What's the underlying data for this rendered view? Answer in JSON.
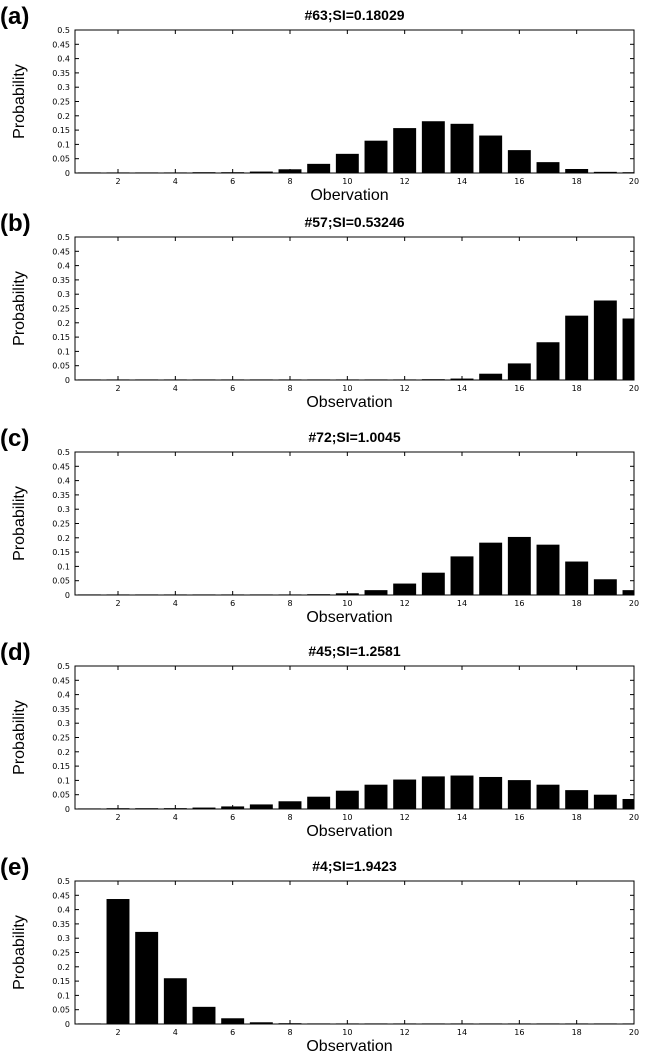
{
  "chart_data": [
    {
      "type": "bar",
      "panel_label": "(a)",
      "title": "#63;SI=0.18029",
      "xlabel": "Obervation",
      "ylabel": "Probability",
      "x": [
        1,
        2,
        3,
        4,
        5,
        6,
        7,
        8,
        9,
        10,
        11,
        12,
        13,
        14,
        15,
        16,
        17,
        18,
        19,
        20
      ],
      "values": [
        0,
        0,
        0,
        0,
        0.001,
        0.002,
        0.005,
        0.013,
        0.032,
        0.067,
        0.113,
        0.157,
        0.181,
        0.172,
        0.131,
        0.08,
        0.038,
        0.014,
        0.004,
        0.001
      ],
      "xticks": [
        2,
        4,
        6,
        8,
        10,
        12,
        14,
        16,
        18,
        20
      ],
      "yticks": [
        "0",
        "0.05",
        "0.1",
        "0.15",
        "0.2",
        "0.25",
        "0.3",
        "0.35",
        "0.4",
        "0.45",
        "0.5"
      ],
      "xlim": [
        0.5,
        20
      ],
      "ylim": [
        0,
        0.5
      ],
      "grid": false
    },
    {
      "type": "bar",
      "panel_label": "(b)",
      "title": "#57;SI=0.53246",
      "xlabel": "Observation",
      "ylabel": "Probability",
      "x": [
        1,
        2,
        3,
        4,
        5,
        6,
        7,
        8,
        9,
        10,
        11,
        12,
        13,
        14,
        15,
        16,
        17,
        18,
        19,
        20
      ],
      "values": [
        0,
        0,
        0,
        0,
        0,
        0,
        0,
        0,
        0,
        0,
        0,
        0,
        0.001,
        0.005,
        0.022,
        0.058,
        0.132,
        0.225,
        0.278,
        0.215
      ],
      "xticks": [
        2,
        4,
        6,
        8,
        10,
        12,
        14,
        16,
        18,
        20
      ],
      "yticks": [
        "0",
        "0.05",
        "0.1",
        "0.15",
        "0.2",
        "0.25",
        "0.3",
        "0.35",
        "0.4",
        "0.45",
        "0.5"
      ],
      "xlim": [
        0.5,
        20
      ],
      "ylim": [
        0,
        0.5
      ],
      "grid": false
    },
    {
      "type": "bar",
      "panel_label": "(c)",
      "title": "#72;SI=1.0045",
      "xlabel": "Observation",
      "ylabel": "Probability",
      "x": [
        1,
        2,
        3,
        4,
        5,
        6,
        7,
        8,
        9,
        10,
        11,
        12,
        13,
        14,
        15,
        16,
        17,
        18,
        19,
        20
      ],
      "values": [
        0,
        0,
        0,
        0,
        0,
        0,
        0,
        0,
        0.002,
        0.006,
        0.017,
        0.04,
        0.078,
        0.135,
        0.183,
        0.203,
        0.176,
        0.117,
        0.055,
        0.017
      ],
      "xticks": [
        2,
        4,
        6,
        8,
        10,
        12,
        14,
        16,
        18,
        20
      ],
      "yticks": [
        "0",
        "0.05",
        "0.1",
        "0.15",
        "0.2",
        "0.25",
        "0.3",
        "0.35",
        "0.4",
        "0.45",
        "0.5"
      ],
      "xlim": [
        0.5,
        20
      ],
      "ylim": [
        0,
        0.5
      ],
      "grid": false
    },
    {
      "type": "bar",
      "panel_label": "(d)",
      "title": "#45;SI=1.2581",
      "xlabel": "Observation",
      "ylabel": "Probability",
      "x": [
        1,
        2,
        3,
        4,
        5,
        6,
        7,
        8,
        9,
        10,
        11,
        12,
        13,
        14,
        15,
        16,
        17,
        18,
        19,
        20
      ],
      "values": [
        0,
        0.001,
        0.002,
        0.003,
        0.005,
        0.009,
        0.016,
        0.027,
        0.043,
        0.064,
        0.085,
        0.103,
        0.114,
        0.117,
        0.112,
        0.101,
        0.085,
        0.066,
        0.05,
        0.035
      ],
      "xticks": [
        2,
        4,
        6,
        8,
        10,
        12,
        14,
        16,
        18,
        20
      ],
      "yticks": [
        "0",
        "0.05",
        "0.1",
        "0.15",
        "0.2",
        "0.25",
        "0.3",
        "0.35",
        "0.4",
        "0.45",
        "0.5"
      ],
      "xlim": [
        0.5,
        20
      ],
      "ylim": [
        0,
        0.5
      ],
      "grid": false
    },
    {
      "type": "bar",
      "panel_label": "(e)",
      "title": "#4;SI=1.9423",
      "xlabel": "Observation",
      "ylabel": "Probability",
      "x": [
        1,
        2,
        3,
        4,
        5,
        6,
        7,
        8,
        9,
        10,
        11,
        12,
        13,
        14,
        15,
        16,
        17,
        18,
        19,
        20
      ],
      "values": [
        0,
        0.437,
        0.322,
        0.16,
        0.06,
        0.02,
        0.006,
        0.002,
        0,
        0,
        0,
        0,
        0,
        0,
        0,
        0,
        0,
        0,
        0,
        0
      ],
      "xticks": [
        2,
        4,
        6,
        8,
        10,
        12,
        14,
        16,
        18,
        20
      ],
      "yticks": [
        "0",
        "0.05",
        "0.1",
        "0.15",
        "0.2",
        "0.25",
        "0.3",
        "0.35",
        "0.4",
        "0.45",
        "0.5"
      ],
      "xlim": [
        0.5,
        20
      ],
      "ylim": [
        0,
        0.5
      ],
      "grid": false
    }
  ]
}
